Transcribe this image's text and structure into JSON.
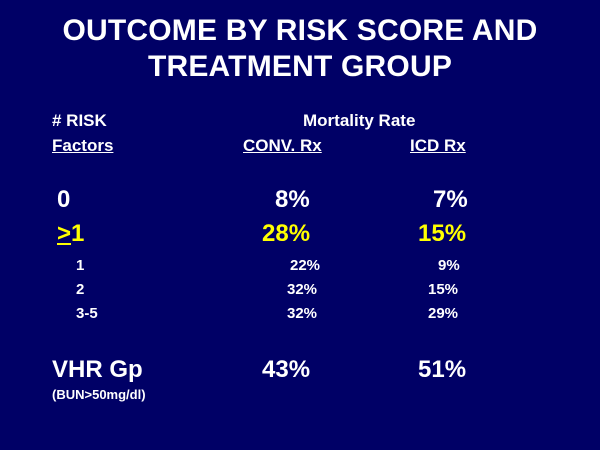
{
  "title": {
    "line1": "OUTCOME BY RISK SCORE AND",
    "line2": "TREATMENT GROUP"
  },
  "headers": {
    "risk_line1": "# RISK",
    "risk_line2": "Factors",
    "mortality_rate": "Mortality Rate",
    "conv": "CONV. Rx",
    "icd": "ICD Rx"
  },
  "rows": [
    {
      "label": "0",
      "conv": "8%",
      "icd": "7%"
    },
    {
      "label_prefix": ">",
      "label_suffix": "1",
      "conv": "28%",
      "icd": "15%"
    },
    {
      "label": "1",
      "conv": "22%",
      "icd": "9%"
    },
    {
      "label": "2",
      "conv": "32%",
      "icd": "15%"
    },
    {
      "label": "3-5",
      "conv": "32%",
      "icd": "29%"
    }
  ],
  "vhr": {
    "label": "VHR Gp",
    "note": "(BUN>50mg/dl)",
    "conv": "43%",
    "icd": "51%"
  },
  "colors": {
    "background": "#000066",
    "text": "#ffffff",
    "highlight": "#ffff00"
  }
}
